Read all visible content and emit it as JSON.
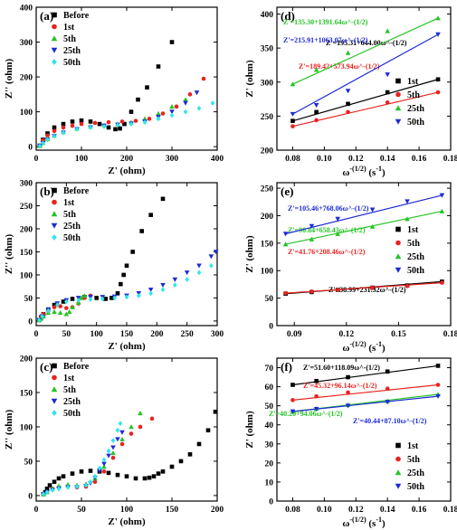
{
  "chart_data": [
    {
      "panel": "(a)",
      "type": "scatter",
      "xlabel": "Z' (ohm)",
      "ylabel": "Z'' (ohm)",
      "xlim": [
        0,
        400
      ],
      "ylim": [
        -10,
        400
      ],
      "xticks": [
        0,
        100,
        200,
        300,
        400
      ],
      "yticks": [
        0,
        100,
        200,
        300,
        400
      ],
      "legend_position": "top-left",
      "series": [
        {
          "name": "Before",
          "color": "#000000",
          "marker": "square",
          "x": [
            8,
            15,
            25,
            40,
            60,
            80,
            100,
            120,
            140,
            160,
            175,
            185,
            195,
            210,
            225,
            245,
            270,
            300
          ],
          "y": [
            3,
            20,
            38,
            55,
            65,
            72,
            75,
            72,
            65,
            55,
            50,
            52,
            65,
            100,
            135,
            170,
            230,
            300
          ]
        },
        {
          "name": "1st",
          "color": "#e8231f",
          "marker": "circle",
          "x": [
            8,
            15,
            25,
            40,
            60,
            80,
            100,
            130,
            160,
            190,
            220,
            250,
            280,
            310,
            340,
            370
          ],
          "y": [
            3,
            18,
            32,
            45,
            55,
            60,
            65,
            68,
            70,
            72,
            74,
            80,
            95,
            115,
            150,
            195
          ]
        },
        {
          "name": "5th",
          "color": "#25c425",
          "marker": "triangle-up",
          "x": [
            8,
            15,
            25,
            40,
            60,
            90,
            120,
            150,
            180,
            210,
            240,
            270,
            300,
            330
          ],
          "y": [
            2,
            12,
            22,
            32,
            42,
            52,
            58,
            62,
            65,
            70,
            80,
            95,
            115,
            135
          ]
        },
        {
          "name": "25th",
          "color": "#1d2bd6",
          "marker": "triangle-down",
          "x": [
            8,
            15,
            25,
            40,
            60,
            90,
            120,
            150,
            180,
            210,
            240,
            270,
            300,
            330,
            355
          ],
          "y": [
            2,
            10,
            20,
            30,
            40,
            50,
            55,
            60,
            63,
            66,
            72,
            85,
            100,
            125,
            155
          ]
        },
        {
          "name": "50th",
          "color": "#2ee6ee",
          "marker": "diamond",
          "x": [
            8,
            15,
            25,
            40,
            60,
            90,
            120,
            150,
            180,
            210,
            240,
            270,
            300,
            330,
            360,
            390
          ],
          "y": [
            2,
            10,
            20,
            30,
            40,
            50,
            55,
            58,
            62,
            65,
            70,
            80,
            90,
            100,
            110,
            125
          ]
        }
      ]
    },
    {
      "panel": "(b)",
      "type": "scatter",
      "xlabel": "Z' (ohm)",
      "ylabel": "Z'' (ohm)",
      "xlim": [
        0,
        300
      ],
      "ylim": [
        -10,
        300
      ],
      "xticks": [
        0,
        50,
        100,
        150,
        200,
        250,
        300
      ],
      "yticks": [
        0,
        50,
        100,
        150,
        200,
        250,
        300
      ],
      "legend_position": "top-left",
      "series": [
        {
          "name": "Before",
          "color": "#000000",
          "marker": "square",
          "x": [
            5,
            8,
            12,
            20,
            30,
            45,
            60,
            80,
            100,
            115,
            125,
            135,
            140,
            145,
            150,
            160,
            175,
            190,
            210
          ],
          "y": [
            2,
            8,
            15,
            25,
            35,
            42,
            48,
            52,
            50,
            48,
            50,
            60,
            80,
            100,
            120,
            150,
            195,
            230,
            265
          ]
        },
        {
          "name": "1st",
          "color": "#e8231f",
          "marker": "circle",
          "x": [
            5,
            8,
            12,
            20,
            30,
            40,
            50,
            60,
            70,
            80,
            90
          ],
          "y": [
            2,
            8,
            15,
            22,
            30,
            32,
            28,
            30,
            38,
            50,
            55
          ]
        },
        {
          "name": "5th",
          "color": "#25c425",
          "marker": "triangle-up",
          "x": [
            5,
            8,
            12,
            20,
            30,
            40,
            50,
            55,
            60,
            70,
            75,
            80
          ],
          "y": [
            2,
            5,
            10,
            18,
            20,
            18,
            15,
            20,
            30,
            40,
            50,
            55
          ]
        },
        {
          "name": "25th",
          "color": "#1d2bd6",
          "marker": "triangle-down",
          "x": [
            5,
            10,
            20,
            35,
            50,
            70,
            90,
            110,
            130,
            150,
            170,
            190,
            210,
            230,
            250,
            270,
            290,
            298
          ],
          "y": [
            2,
            10,
            25,
            38,
            45,
            50,
            52,
            52,
            53,
            55,
            60,
            68,
            78,
            90,
            105,
            120,
            140,
            150
          ]
        },
        {
          "name": "50th",
          "color": "#2ee6ee",
          "marker": "diamond",
          "x": [
            5,
            10,
            20,
            35,
            50,
            70,
            90,
            110,
            130,
            150,
            170,
            190,
            210,
            230,
            250,
            270,
            290
          ],
          "y": [
            2,
            10,
            22,
            35,
            42,
            45,
            47,
            48,
            50,
            52,
            55,
            60,
            68,
            78,
            90,
            105,
            120
          ]
        }
      ]
    },
    {
      "panel": "(c)",
      "type": "scatter",
      "xlabel": "Z' (ohm)",
      "ylabel": "Z'' (ohm)",
      "xlim": [
        0,
        200
      ],
      "ylim": [
        -8,
        200
      ],
      "xticks": [
        0,
        50,
        100,
        150,
        200
      ],
      "yticks": [
        0,
        50,
        100,
        150,
        200
      ],
      "legend_position": "top-left",
      "series": [
        {
          "name": "Before",
          "color": "#000000",
          "marker": "square",
          "x": [
            8,
            10,
            12,
            15,
            20,
            25,
            30,
            40,
            50,
            60,
            70,
            80,
            90,
            100,
            110,
            120,
            125,
            130,
            135,
            140,
            150,
            160,
            170,
            180,
            190,
            198
          ],
          "y": [
            2,
            5,
            10,
            15,
            20,
            25,
            28,
            32,
            35,
            36,
            35,
            33,
            30,
            28,
            25,
            25,
            26,
            28,
            32,
            35,
            42,
            50,
            60,
            75,
            95,
            122
          ]
        },
        {
          "name": "1st",
          "color": "#e8231f",
          "marker": "circle",
          "x": [
            8,
            12,
            18,
            25,
            35,
            45,
            55,
            65,
            75,
            85,
            95,
            105,
            115,
            128
          ],
          "y": [
            2,
            5,
            10,
            12,
            13,
            12,
            13,
            20,
            35,
            55,
            75,
            90,
            100,
            112
          ]
        },
        {
          "name": "5th",
          "color": "#25c425",
          "marker": "triangle-up",
          "x": [
            8,
            12,
            18,
            25,
            35,
            45,
            55,
            65,
            75,
            85,
            95,
            105,
            115
          ],
          "y": [
            2,
            5,
            10,
            14,
            16,
            15,
            17,
            25,
            42,
            62,
            82,
            100,
            120
          ]
        },
        {
          "name": "25th",
          "color": "#1d2bd6",
          "marker": "triangle-down",
          "x": [
            8,
            12,
            18,
            25,
            35,
            45,
            55,
            60,
            65,
            70,
            75,
            80,
            85,
            90,
            95
          ],
          "y": [
            2,
            5,
            8,
            10,
            12,
            12,
            14,
            18,
            26,
            36,
            46,
            58,
            70,
            82,
            92
          ]
        },
        {
          "name": "50th",
          "color": "#2ee6ee",
          "marker": "diamond",
          "x": [
            8,
            12,
            18,
            25,
            35,
            45,
            55,
            60,
            65,
            70,
            75,
            80,
            85,
            90,
            93
          ],
          "y": [
            2,
            5,
            8,
            10,
            12,
            13,
            15,
            20,
            28,
            40,
            52,
            65,
            80,
            95,
            105
          ]
        }
      ]
    },
    {
      "panel": "(d)",
      "type": "scatter",
      "xlabel": "ω^-(1/2) (s^-1)",
      "ylabel": "Z' (ohm)",
      "xlim": [
        0.07,
        0.18
      ],
      "ylim": [
        200,
        410
      ],
      "xticks": [
        0.08,
        0.1,
        0.12,
        0.14,
        0.16,
        0.18
      ],
      "yticks": [
        200,
        250,
        300,
        350,
        400
      ],
      "legend_position": "bottom-right",
      "series": [
        {
          "name": "1st",
          "color": "#000000",
          "marker": "square",
          "x": [
            0.08,
            0.095,
            0.115,
            0.14,
            0.172
          ],
          "y": [
            243,
            256,
            268,
            285,
            304
          ],
          "fit": {
            "a": 195.31,
            "b": 644.0,
            "label": "Z'=195.31+644.00ω^-(1/2)"
          }
        },
        {
          "name": "5th",
          "color": "#e8231f",
          "marker": "circle",
          "x": [
            0.08,
            0.095,
            0.115,
            0.14,
            0.172
          ],
          "y": [
            235,
            244,
            256,
            270,
            285
          ],
          "fit": {
            "a": 189.42,
            "b": 573.94,
            "label": "Z'=189.42+573.94ω^-(1/2)"
          }
        },
        {
          "name": "25th",
          "color": "#25c425",
          "marker": "triangle-up",
          "x": [
            0.08,
            0.095,
            0.115,
            0.14,
            0.172
          ],
          "y": [
            297,
            318,
            343,
            375,
            394
          ],
          "fit": {
            "a": 135.3,
            "b": 1391.64,
            "label": "Z'=135.30+1391.64ω^-(1/2)"
          }
        },
        {
          "name": "50th",
          "color": "#1d2bd6",
          "marker": "triangle-down",
          "x": [
            0.08,
            0.095,
            0.115,
            0.14,
            0.172
          ],
          "y": [
            253,
            266,
            287,
            311,
            370
          ],
          "fit": {
            "a": 215.91,
            "b": 1063.07,
            "label": "Z'=215.91+1063.07ω^-(1/2)"
          }
        }
      ]
    },
    {
      "panel": "(e)",
      "type": "scatter",
      "xlabel": "ω^-(1/2) (s^-1)",
      "ylabel": "Z' (ohm)",
      "xlim": [
        0.08,
        0.18
      ],
      "ylim": [
        0,
        260
      ],
      "xticks": [
        0.09,
        0.12,
        0.15,
        0.18
      ],
      "yticks": [
        0,
        50,
        100,
        150,
        200,
        250
      ],
      "legend_position": "right",
      "series": [
        {
          "name": "1st",
          "color": "#000000",
          "marker": "square",
          "x": [
            0.085,
            0.1,
            0.115,
            0.135,
            0.155,
            0.175
          ],
          "y": [
            58,
            61,
            65,
            69,
            73,
            80
          ],
          "fit": {
            "a": 38.99,
            "b": 231.32,
            "label": "Z'=38.99+231.32ω^-(1/2)"
          }
        },
        {
          "name": "5th",
          "color": "#e8231f",
          "marker": "circle",
          "x": [
            0.085,
            0.1,
            0.115,
            0.135,
            0.155,
            0.175
          ],
          "y": [
            59,
            62,
            65,
            69,
            72,
            78
          ],
          "fit": {
            "a": 41.76,
            "b": 208.46,
            "label": "Z'=41.76+208.46ω^-(1/2)"
          }
        },
        {
          "name": "25th",
          "color": "#25c425",
          "marker": "triangle-up",
          "x": [
            0.085,
            0.1,
            0.115,
            0.135,
            0.155,
            0.175
          ],
          "y": [
            148,
            157,
            167,
            180,
            194,
            208
          ],
          "fit": {
            "a": 90.84,
            "b": 658.43,
            "label": "Z'=90.84+658.43ω^-(1/2)"
          }
        },
        {
          "name": "50th",
          "color": "#1d2bd6",
          "marker": "triangle-down",
          "x": [
            0.085,
            0.1,
            0.115,
            0.135,
            0.155,
            0.175
          ],
          "y": [
            167,
            181,
            194,
            211,
            226,
            237
          ],
          "fit": {
            "a": 105.46,
            "b": 768.06,
            "label": "Z'=105.46+768.06ω^-(1/2)"
          }
        }
      ]
    },
    {
      "panel": "(f)",
      "type": "scatter",
      "xlabel": "ω^-(1/2) (s^-1)",
      "ylabel": "Z' (ohm)",
      "xlim": [
        0.07,
        0.18
      ],
      "ylim": [
        0,
        75
      ],
      "xticks": [
        0.08,
        0.1,
        0.12,
        0.14,
        0.16,
        0.18
      ],
      "yticks": [
        0,
        10,
        20,
        30,
        40,
        50,
        60,
        70
      ],
      "legend_position": "bottom-right",
      "series": [
        {
          "name": "1st",
          "color": "#000000",
          "marker": "square",
          "x": [
            0.08,
            0.095,
            0.115,
            0.14,
            0.172
          ],
          "y": [
            61,
            63,
            65,
            68,
            71
          ],
          "fit": {
            "a": 51.6,
            "b": 118.09,
            "label": "Z'=51.60+118.09ω^-(1/2)"
          }
        },
        {
          "name": "5th",
          "color": "#e8231f",
          "marker": "circle",
          "x": [
            0.08,
            0.095,
            0.115,
            0.14,
            0.172
          ],
          "y": [
            53,
            55,
            57,
            59,
            61
          ],
          "fit": {
            "a": 45.32,
            "b": 96.14,
            "label": "Z'=45.32+96.14ω^-(1/2)"
          }
        },
        {
          "name": "25th",
          "color": "#25c425",
          "marker": "triangle-up",
          "x": [
            0.08,
            0.095,
            0.115,
            0.14,
            0.172
          ],
          "y": [
            47,
            48.5,
            50.5,
            52.5,
            56
          ],
          "fit": {
            "a": 40.2,
            "b": 94.06,
            "label": "Z'=40.20+94.06ω^-(1/2)"
          }
        },
        {
          "name": "50th",
          "color": "#1d2bd6",
          "marker": "triangle-down",
          "x": [
            0.08,
            0.095,
            0.115,
            0.14,
            0.172
          ],
          "y": [
            47,
            48.3,
            50,
            52,
            55
          ],
          "fit": {
            "a": 40.44,
            "b": 87.1,
            "label": "Z'=40.44+87.10ω^-(1/2)"
          }
        }
      ]
    }
  ]
}
